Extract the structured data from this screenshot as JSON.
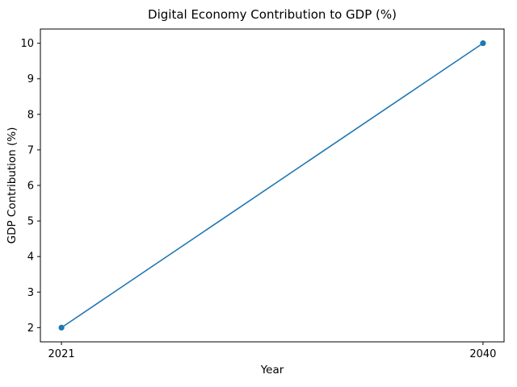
{
  "chart_data": {
    "type": "line",
    "title": "Digital Economy Contribution to GDP (%)",
    "xlabel": "Year",
    "ylabel": "GDP Contribution (%)",
    "x": [
      2021,
      2040
    ],
    "values": [
      2,
      10
    ],
    "xticks": [
      "2021",
      "2040"
    ],
    "xtick_values": [
      2021,
      2040
    ],
    "yticks": [
      "2",
      "3",
      "4",
      "5",
      "6",
      "7",
      "8",
      "9",
      "10"
    ],
    "ytick_values": [
      2,
      3,
      4,
      5,
      6,
      7,
      8,
      9,
      10
    ],
    "xlim": [
      2020.05,
      2040.95
    ],
    "ylim": [
      1.6,
      10.4
    ],
    "line_color": "#1f77b4",
    "axis_color": "#000000",
    "marker": "circle",
    "grid": false,
    "legend": null
  }
}
